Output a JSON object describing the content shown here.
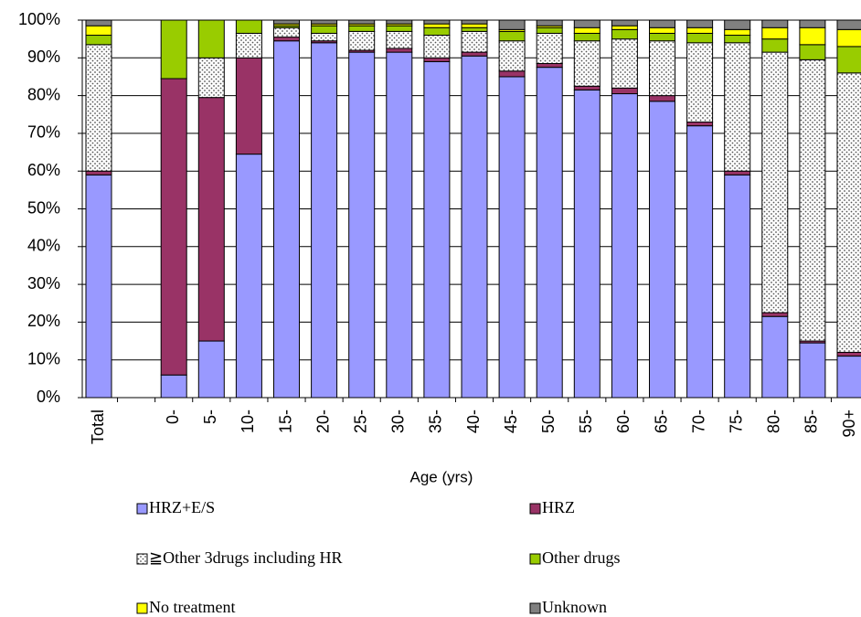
{
  "chart_data": {
    "type": "stacked-bar",
    "x_label": "Age (yrs)",
    "categories": [
      "Total",
      null,
      "0-",
      "5-",
      "10-",
      "15-",
      "20-",
      "25-",
      "30-",
      "35-",
      "40-",
      "45-",
      "50-",
      "55-",
      "60-",
      "65-",
      "70-",
      "75-",
      "80-",
      "85-",
      "90+"
    ],
    "ylim": [
      0,
      100
    ],
    "yticks": [
      {
        "value": 0,
        "label": "0%"
      },
      {
        "value": 10,
        "label": "10%"
      },
      {
        "value": 20,
        "label": "20%"
      },
      {
        "value": 30,
        "label": "30%"
      },
      {
        "value": 40,
        "label": "40%"
      },
      {
        "value": 50,
        "label": "50%"
      },
      {
        "value": 60,
        "label": "60%"
      },
      {
        "value": 70,
        "label": "70%"
      },
      {
        "value": 80,
        "label": "80%"
      },
      {
        "value": 90,
        "label": "90%"
      },
      {
        "value": 100,
        "label": "100%"
      }
    ],
    "grid": true,
    "legend": "bottom",
    "series": [
      {
        "name": "HRZ+E/S",
        "color": "#9999ff",
        "values": [
          59,
          null,
          6,
          15,
          64.5,
          94.5,
          94,
          91.5,
          91.5,
          89,
          90.5,
          85,
          87.5,
          81.5,
          80.5,
          78.5,
          72,
          59,
          21.5,
          14.5,
          11
        ]
      },
      {
        "name": "HRZ",
        "color": "#993366",
        "values": [
          1,
          null,
          78.5,
          64.5,
          25.5,
          1,
          0.5,
          0.5,
          1,
          1,
          1,
          1.5,
          1,
          1,
          1.5,
          1.5,
          1,
          1,
          1,
          0.5,
          1
        ]
      },
      {
        "name": "≧Other 3drugs including HR",
        "color": "#ffffff",
        "pattern": "dots",
        "values": [
          33.5,
          null,
          0,
          10.5,
          6.5,
          2.5,
          2,
          5,
          4.5,
          6,
          5.5,
          8,
          8,
          12,
          13,
          14.5,
          21,
          34,
          69,
          74.5,
          74
        ]
      },
      {
        "name": "Other drugs",
        "color": "#99cc00",
        "values": [
          2.5,
          null,
          15.5,
          10,
          3.5,
          0.5,
          2,
          1.5,
          1.5,
          2,
          1,
          2.5,
          1.5,
          2,
          2.5,
          2,
          2.5,
          2,
          3.5,
          4,
          7
        ]
      },
      {
        "name": "No treatment",
        "color": "#ffff00",
        "values": [
          2.5,
          null,
          0,
          0,
          0,
          0.5,
          0.5,
          0.5,
          0.5,
          1,
          1,
          0.5,
          0.5,
          1.5,
          1,
          1.5,
          1.5,
          1.5,
          3,
          4.5,
          4.5
        ]
      },
      {
        "name": "Unknown",
        "color": "#808080",
        "values": [
          1.5,
          null,
          0,
          0,
          0,
          1,
          1,
          1,
          1,
          1,
          1,
          2.5,
          1.5,
          2,
          1.5,
          2,
          2,
          2.5,
          2,
          2,
          2.5
        ]
      }
    ]
  }
}
